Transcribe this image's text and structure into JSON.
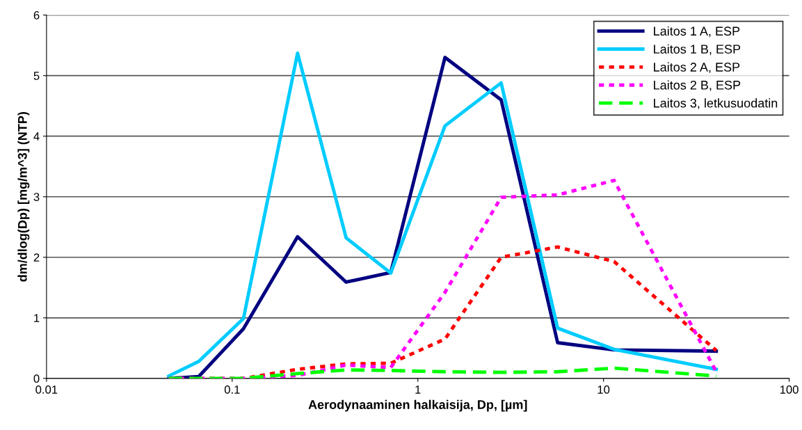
{
  "chart_data": {
    "type": "line",
    "xlabel": "Aerodynaaminen halkaisija, Dp, [µm]",
    "ylabel": "dm/dlog(Dp) [mg/m^3] (NTP)",
    "x": [
      0.0456,
      0.066,
      0.115,
      0.225,
      0.411,
      0.715,
      1.4,
      2.81,
      5.66,
      11.4,
      40.5
    ],
    "series": [
      {
        "name": "Laitos 1 A, ESP",
        "color": "#000080",
        "line_style": "solid",
        "values": [
          0.0,
          0.03,
          0.82,
          2.34,
          1.59,
          1.75,
          5.3,
          4.6,
          0.59,
          0.47,
          0.45
        ]
      },
      {
        "name": "Laitos 1 B, ESP",
        "color": "#00ccff",
        "line_style": "solid",
        "values": [
          0.04,
          0.28,
          0.99,
          5.37,
          2.32,
          1.74,
          4.17,
          4.88,
          0.83,
          0.48,
          0.15
        ]
      },
      {
        "name": "Laitos 2 A, ESP",
        "color": "#ff0000",
        "line_style": "dotted",
        "values": [
          0.0,
          0.0,
          0.0,
          0.15,
          0.24,
          0.25,
          0.65,
          2.0,
          2.17,
          1.93,
          0.46
        ]
      },
      {
        "name": "Laitos 2 B, ESP",
        "color": "#ff00ff",
        "line_style": "dotted",
        "values": [
          0.0,
          0.0,
          0.0,
          0.05,
          0.22,
          0.18,
          1.42,
          2.99,
          3.03,
          3.27,
          0.11
        ]
      },
      {
        "name": "Laitos 3, letkusuodatin",
        "color": "#00ff00",
        "line_style": "dashed",
        "values": [
          0.0,
          0.0,
          0.0,
          0.08,
          0.14,
          0.13,
          0.11,
          0.1,
          0.11,
          0.17,
          0.04
        ]
      }
    ],
    "log": "x",
    "xlim": [
      0.01,
      100
    ],
    "xticks": [
      0.01,
      0.1,
      1,
      10,
      100
    ],
    "ylim": [
      0,
      6
    ],
    "yticks": [
      0,
      1,
      2,
      3,
      4,
      5,
      6
    ],
    "grid": "y",
    "legend": "top right",
    "marker": "none"
  }
}
